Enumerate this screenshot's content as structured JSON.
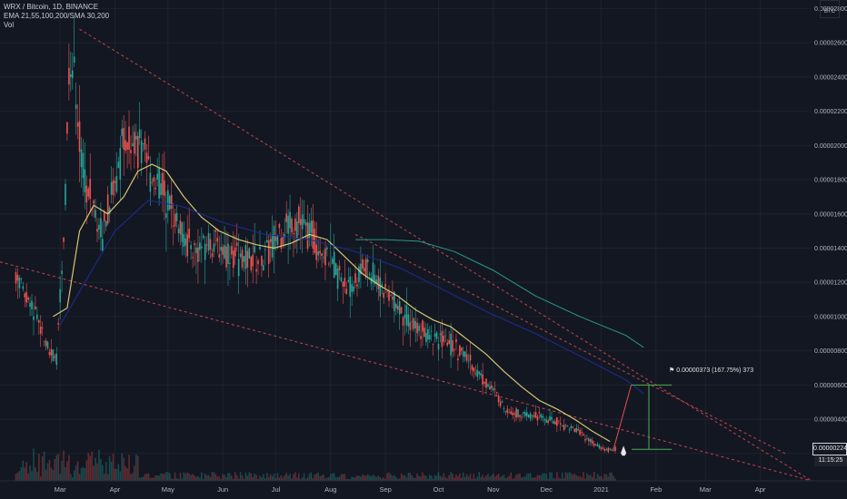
{
  "legend": {
    "symbol": "WRX / Bitcoin, 1D, BINANCE",
    "indicators": "EMA 21,55,100,200/SMA 30,200",
    "volume": "Vol"
  },
  "axis_currency": "BTC",
  "current_price": "0.00000224",
  "countdown": "11:15:25",
  "target_label": "0.00000373 (167.75%) 373",
  "colors": {
    "background": "#131722",
    "grid": "#1e222d",
    "up": "#26a69a",
    "down": "#ef5350",
    "ema21": "#e8d97a",
    "ema55": "#1f2b8f",
    "ema100": "#2aa890",
    "ema200": "#c2185b",
    "trendline": "#e05050",
    "target": "#4caf50"
  },
  "chart_data": {
    "type": "line",
    "title": "WRX / Bitcoin, 1D, BINANCE",
    "xlabel": "",
    "ylabel": "",
    "y_tick_labels": [
      "0.00000200",
      "0.00000400",
      "0.00000600",
      "0.00000800",
      "0.00001000",
      "0.00001200",
      "0.00001400",
      "0.00001600",
      "0.00001800",
      "0.00002000",
      "0.00002200",
      "0.00002400",
      "0.00002600",
      "0.00002800"
    ],
    "y_tick_values": [
      2e-06,
      4e-06,
      6e-06,
      8e-06,
      1e-05,
      1.2e-05,
      1.4e-05,
      1.6e-05,
      1.8e-05,
      2e-05,
      2.2e-05,
      2.4e-05,
      2.6e-05,
      2.8e-05
    ],
    "ylim": [
      4e-07,
      2.85e-05
    ],
    "x_tick_labels": [
      "Mar",
      "Apr",
      "May",
      "Jun",
      "Jul",
      "Aug",
      "Sep",
      "Oct",
      "Nov",
      "Dec",
      "2021",
      "Feb",
      "Mar",
      "Apr"
    ],
    "x_tick_dates": [
      "2020-03-01",
      "2020-04-01",
      "2020-05-01",
      "2020-06-01",
      "2020-07-01",
      "2020-08-01",
      "2020-09-01",
      "2020-10-01",
      "2020-11-01",
      "2020-12-01",
      "2021-01-01",
      "2021-02-01",
      "2021-03-01",
      "2021-04-01"
    ],
    "xlim": [
      "2020-01-27",
      "2021-04-30"
    ],
    "series": [
      {
        "x": [
          "2020-02-05",
          "2020-02-08",
          "2020-02-12",
          "2020-02-16",
          "2020-02-20",
          "2020-02-24",
          "2020-02-28",
          "2020-03-03",
          "2020-03-06",
          "2020-03-09",
          "2020-03-12",
          "2020-03-16",
          "2020-03-20",
          "2020-03-25",
          "2020-03-31",
          "2020-04-06",
          "2020-04-12",
          "2020-04-18",
          "2020-04-24",
          "2020-04-30",
          "2020-05-08",
          "2020-05-16",
          "2020-05-24",
          "2020-06-01",
          "2020-06-09",
          "2020-06-17",
          "2020-06-25",
          "2020-07-03",
          "2020-07-11",
          "2020-07-19",
          "2020-07-27",
          "2020-08-04",
          "2020-08-12",
          "2020-08-20",
          "2020-08-28",
          "2020-09-05",
          "2020-09-13",
          "2020-09-21",
          "2020-09-29",
          "2020-10-07",
          "2020-10-15",
          "2020-10-23",
          "2020-10-31",
          "2020-11-08",
          "2020-11-16",
          "2020-11-24",
          "2020-12-02",
          "2020-12-10",
          "2020-12-18",
          "2020-12-26",
          "2021-01-03",
          "2021-01-09"
        ],
        "values": [
          1.25e-05,
          1.18e-05,
          1.08e-05,
          1.02e-05,
          9.2e-06,
          8e-06,
          7.5e-06,
          1.4e-05,
          2.4e-05,
          2.5e-05,
          2e-05,
          1.75e-05,
          1.65e-05,
          1.5e-05,
          1.75e-05,
          2e-05,
          2.05e-05,
          1.9e-05,
          1.8e-05,
          1.72e-05,
          1.5e-05,
          1.38e-05,
          1.45e-05,
          1.4e-05,
          1.35e-05,
          1.32e-05,
          1.35e-05,
          1.5e-05,
          1.58e-05,
          1.5e-05,
          1.4e-05,
          1.28e-05,
          1.15e-05,
          1.3e-05,
          1.2e-05,
          1.1e-05,
          1e-05,
          9.2e-06,
          8.8e-06,
          8.5e-06,
          7.8e-06,
          6.8e-06,
          5.8e-06,
          4.6e-06,
          4.3e-06,
          4.2e-06,
          4e-06,
          3.7e-06,
          3.4e-06,
          2.7e-06,
          2.2e-06,
          2.24e-06
        ]
      },
      {
        "x": [
          "2020-02-26",
          "2020-03-05",
          "2020-03-12",
          "2020-03-20",
          "2020-03-28",
          "2020-04-06",
          "2020-04-14",
          "2020-04-22",
          "2020-04-30",
          "2020-05-10",
          "2020-05-20",
          "2020-05-30",
          "2020-06-10",
          "2020-06-20",
          "2020-06-30",
          "2020-07-10",
          "2020-07-20",
          "2020-07-30",
          "2020-08-09",
          "2020-08-19",
          "2020-08-29",
          "2020-09-08",
          "2020-09-18",
          "2020-09-28",
          "2020-10-08",
          "2020-10-18",
          "2020-10-28",
          "2020-11-07",
          "2020-11-17",
          "2020-11-27",
          "2020-12-07",
          "2020-12-17",
          "2020-12-27",
          "2021-01-06"
        ],
        "values": [
          1e-05,
          1.05e-05,
          1.5e-05,
          1.65e-05,
          1.6e-05,
          1.7e-05,
          1.85e-05,
          1.89e-05,
          1.85e-05,
          1.7e-05,
          1.58e-05,
          1.5e-05,
          1.45e-05,
          1.42e-05,
          1.4e-05,
          1.43e-05,
          1.48e-05,
          1.45e-05,
          1.35e-05,
          1.25e-05,
          1.18e-05,
          1.12e-05,
          1.04e-05,
          9.8e-06,
          9.4e-06,
          8.6e-06,
          7.8e-06,
          6.8e-06,
          5.9e-06,
          5.1e-06,
          4.6e-06,
          4e-06,
          3.3e-06,
          2.7e-06
        ]
      },
      {
        "x": [
          "2020-03-01",
          "2020-03-15",
          "2020-04-01",
          "2020-04-20",
          "2020-05-10",
          "2020-06-01",
          "2020-06-25",
          "2020-07-20",
          "2020-08-15",
          "2020-09-10",
          "2020-10-05",
          "2020-10-30",
          "2020-11-25",
          "2020-12-20",
          "2021-01-15",
          "2021-01-25"
        ],
        "values": [
          9.5e-06,
          1.2e-05,
          1.5e-05,
          1.68e-05,
          1.64e-05,
          1.55e-05,
          1.48e-05,
          1.45e-05,
          1.38e-05,
          1.28e-05,
          1.15e-05,
          1.02e-05,
          9e-06,
          7.7e-06,
          6.3e-06,
          5.5e-06
        ]
      },
      {
        "x": [
          "2020-08-15",
          "2020-09-01",
          "2020-09-20",
          "2020-10-10",
          "2020-11-01",
          "2020-11-25",
          "2020-12-20",
          "2021-01-15",
          "2021-01-25"
        ],
        "values": [
          1.45e-05,
          1.45e-05,
          1.44e-05,
          1.38e-05,
          1.27e-05,
          1.12e-05,
          1e-05,
          8.9e-06,
          8.2e-06
        ]
      }
    ]
  }
}
